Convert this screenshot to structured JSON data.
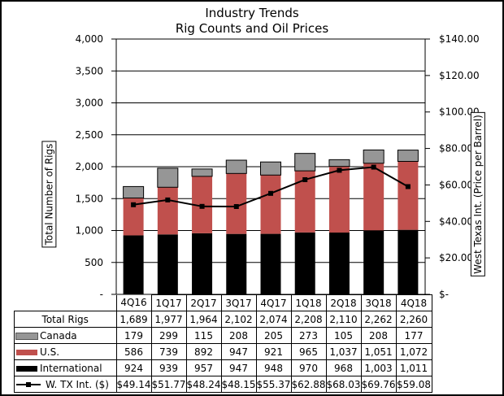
{
  "chart_data": {
    "type": "bar",
    "title": "Industry Trends",
    "subtitle": "Rig Counts and Oil Prices",
    "ylabel": "Total Number of Rigs",
    "y2label": "West Texas Int.  (Price per Barrel)",
    "ylim": [
      0,
      4000
    ],
    "y2lim": [
      0,
      140
    ],
    "yticks": [
      "-",
      "500",
      "1,000",
      "1,500",
      "2,000",
      "2,500",
      "3,000",
      "3,500",
      "4,000"
    ],
    "y2ticks": [
      "$-",
      "$20.00",
      "$40.00",
      "$60.00",
      "$80.00",
      "$100.00",
      "$120.00",
      "$140.00"
    ],
    "grid": true,
    "categories": [
      "4Q16",
      "1Q17",
      "2Q17",
      "3Q17",
      "4Q17",
      "1Q18",
      "2Q18",
      "3Q18",
      "4Q18"
    ],
    "series": [
      {
        "name": "International",
        "kind": "stacked-bar",
        "color": "#000000",
        "values": [
          924,
          939,
          957,
          947,
          948,
          970,
          968,
          1003,
          1011
        ]
      },
      {
        "name": "U.S.",
        "kind": "stacked-bar",
        "color": "#c0504d",
        "values": [
          586,
          739,
          892,
          947,
          921,
          965,
          1037,
          1051,
          1072
        ]
      },
      {
        "name": "Canada",
        "kind": "stacked-bar",
        "color": "#969696",
        "values": [
          179,
          299,
          115,
          208,
          205,
          273,
          105,
          208,
          177
        ]
      },
      {
        "name": "W. TX Int. ($)",
        "kind": "line",
        "axis": "right",
        "color": "#000000",
        "values": [
          49.14,
          51.77,
          48.24,
          48.15,
          55.37,
          62.88,
          68.03,
          69.76,
          59.08
        ]
      }
    ],
    "table": {
      "rows": [
        {
          "label": "Total Rigs",
          "swatch": "none",
          "cells": [
            "1,689",
            "1,977",
            "1,964",
            "2,102",
            "2,074",
            "2,208",
            "2,110",
            "2,262",
            "2,260"
          ]
        },
        {
          "label": "Canada",
          "swatch": "#969696",
          "cells": [
            "179",
            "299",
            "115",
            "208",
            "205",
            "273",
            "105",
            "208",
            "177"
          ]
        },
        {
          "label": "U.S.",
          "swatch": "#c0504d",
          "cells": [
            "586",
            "739",
            "892",
            "947",
            "921",
            "965",
            "1,037",
            "1,051",
            "1,072"
          ]
        },
        {
          "label": "International",
          "swatch": "#000000",
          "cells": [
            "924",
            "939",
            "957",
            "947",
            "948",
            "970",
            "968",
            "1,003",
            "1,011"
          ]
        },
        {
          "label": "W. TX Int. ($)",
          "swatch": "line",
          "cells": [
            "$49.14",
            "$51.77",
            "$48.24",
            "$48.15",
            "$55.37",
            "$62.88",
            "$68.03",
            "$69.76",
            "$59.08"
          ]
        }
      ]
    }
  }
}
